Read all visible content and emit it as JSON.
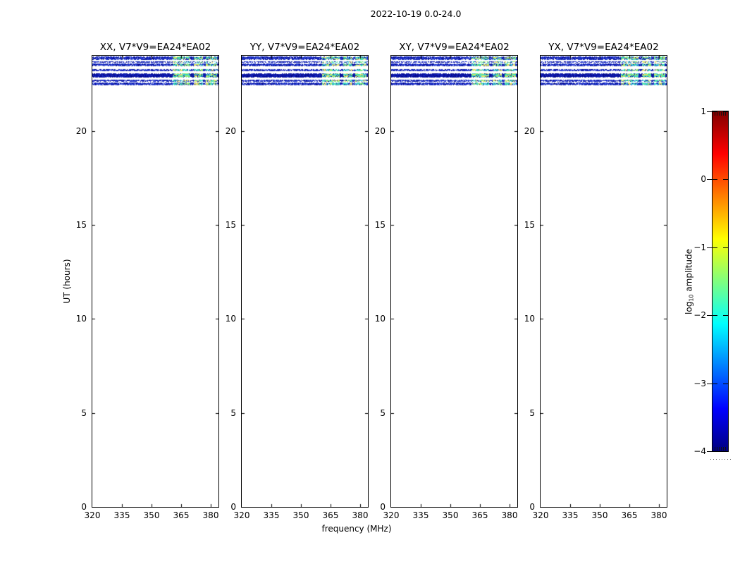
{
  "figure": {
    "title": "2022-10-19 0.0-24.0",
    "background_color": "#ffffff"
  },
  "chart_data": {
    "type": "heatmap",
    "title": "2022-10-19 0.0-24.0",
    "xlabel": "frequency (MHz)",
    "ylabel": "UT (hours)",
    "colorbar_label": "log10 amplitude",
    "panels": [
      {
        "pol": "XX",
        "title": "XX, V7*V9=EA24*EA02"
      },
      {
        "pol": "YY",
        "title": "YY, V7*V9=EA24*EA02"
      },
      {
        "pol": "XY",
        "title": "XY, V7*V9=EA24*EA02"
      },
      {
        "pol": "YX",
        "title": "YX, V7*V9=EA24*EA02"
      }
    ],
    "xlim": [
      320,
      384
    ],
    "ylim": [
      0,
      24
    ],
    "x_tick_labels": [
      "320",
      "335",
      "350",
      "365",
      "380"
    ],
    "x_tick_values": [
      320,
      335,
      350,
      365,
      380
    ],
    "y_tick_labels": [
      "0",
      "5",
      "10",
      "15",
      "20"
    ],
    "y_tick_values": [
      0,
      5,
      10,
      15,
      20
    ],
    "grid": false,
    "colorbar": {
      "label_prefix": "log",
      "label_sub": "10",
      "label_suffix": " amplitude",
      "tick_labels": [
        "1",
        "0",
        "−1",
        "−2",
        "−3",
        "−4"
      ],
      "tick_values": [
        1,
        0,
        -1,
        -2,
        -3,
        -4
      ],
      "vmin": -4,
      "vmax": 1,
      "colormap": "jet",
      "gradient_stops": [
        "#7f0000",
        "#ff0000",
        "#ff7f00",
        "#ffff00",
        "#7fff7f",
        "#00ffff",
        "#007fff",
        "#0000ff",
        "#00007f"
      ]
    },
    "bands": [
      {
        "ut_start": 23.78,
        "ut_end": 23.96,
        "style": "noisy",
        "approx_log10_amp": -3.2
      },
      {
        "ut_start": 23.61,
        "ut_end": 23.69,
        "style": "noisy",
        "approx_log10_amp": -3.3
      },
      {
        "ut_start": 23.42,
        "ut_end": 23.57,
        "style": "noisy",
        "approx_log10_amp": -3.2
      },
      {
        "ut_start": 23.18,
        "ut_end": 23.29,
        "style": "noisy",
        "approx_log10_amp": -3.3
      },
      {
        "ut_start": 22.82,
        "ut_end": 23.06,
        "style": "dense",
        "approx_log10_amp": -3.6
      },
      {
        "ut_start": 22.63,
        "ut_end": 22.73,
        "style": "noisy",
        "approx_log10_amp": -3.3
      },
      {
        "ut_start": 22.44,
        "ut_end": 22.58,
        "style": "noisy",
        "approx_log10_amp": -3.2
      }
    ],
    "bright_patch_segments_freq_frac": [
      [
        0.635,
        0.775
      ],
      [
        0.8,
        0.875
      ],
      [
        0.895,
        0.985
      ]
    ],
    "bright_patch_freq_range_mhz": [
      360,
      383
    ],
    "palette": {
      "base_blue": [
        "#0a12b4",
        "#1c2bd0",
        "#2e47d8",
        "#0d1fa6",
        "#2038cc",
        "#3a55e0",
        "#16279e",
        "#0a0a8c"
      ],
      "dense_blue": [
        "#000a96",
        "#0a14aa",
        "#101fb4",
        "#1a2cc4",
        "#0a0a82"
      ],
      "bright": [
        "#3fd6c4",
        "#52e0b0",
        "#79e87f",
        "#a8e86e",
        "#d8e55f",
        "#e8e06a",
        "#49cfe0",
        "#35dfae"
      ],
      "speck": "#eef2ff"
    },
    "note": "Cross-power dynamic spectra; signal bands only near UT 22.4-24.0 h with brighter cyan/green/yellow patches above ~360 MHz; remainder of the 0-24 h range is blank."
  }
}
